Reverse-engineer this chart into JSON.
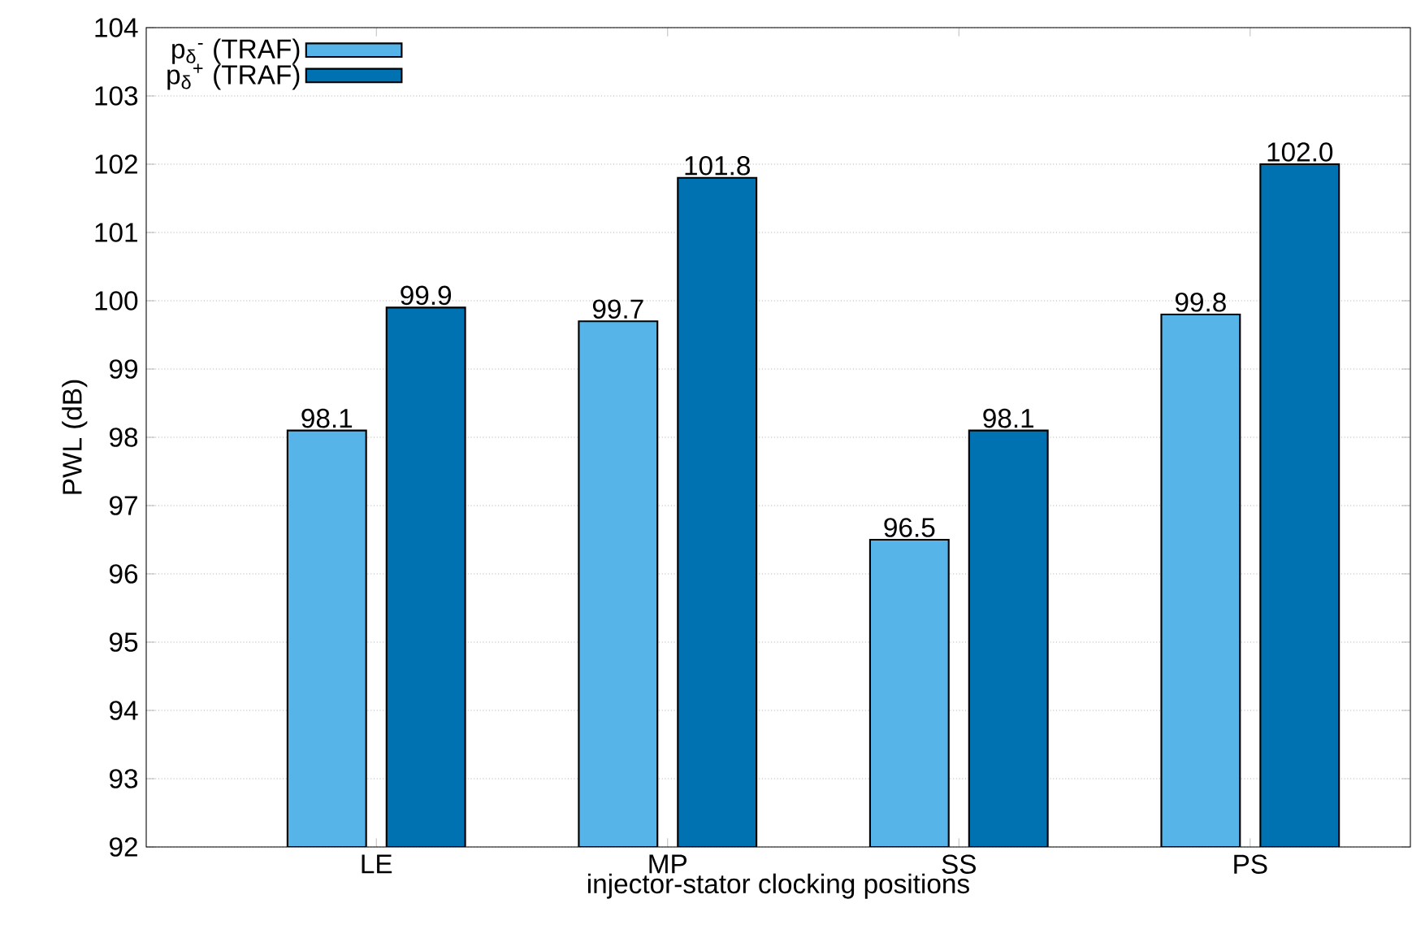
{
  "chart_data": {
    "type": "bar",
    "xlabel": "injector-stator clocking positions",
    "ylabel": "PWL (dB)",
    "categories": [
      "LE",
      "MP",
      "SS",
      "PS"
    ],
    "series": [
      {
        "name": "p$_{δ}$$^{-}$ (TRAF)",
        "color": "#56b4e9",
        "values": [
          98.1,
          99.7,
          96.5,
          99.8
        ],
        "value_labels": [
          "98.1",
          "99.7",
          "96.5",
          "99.8"
        ]
      },
      {
        "name": "p$_{δ}$$^{+}$ (TRAF)",
        "color": "#0072b2",
        "values": [
          99.9,
          101.8,
          98.1,
          102.0
        ],
        "value_labels": [
          "99.9",
          "101.8",
          "98.1",
          "102.0"
        ]
      }
    ],
    "ylim": [
      92,
      104
    ],
    "yticks": [
      92,
      93,
      94,
      95,
      96,
      97,
      98,
      99,
      100,
      101,
      102,
      103,
      104
    ],
    "grid": "y",
    "legend": "top left"
  }
}
